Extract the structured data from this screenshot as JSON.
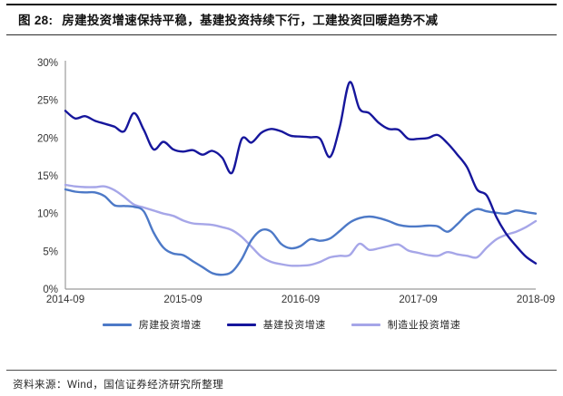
{
  "header": {
    "figure_label": "图 28:",
    "title": "房建投资增速保持平稳，基建投资持续下行，工建投资回暖趋势不减"
  },
  "footer": {
    "source": "资料来源：Wind，国信证券经济研究所整理"
  },
  "chart_data": {
    "type": "line",
    "title": "",
    "xlabel": "",
    "ylabel": "",
    "ylim": [
      0,
      30
    ],
    "y_tick_labels": [
      "0%",
      "5%",
      "10%",
      "15%",
      "20%",
      "25%",
      "30%"
    ],
    "x_tick_labels": [
      "2014-09",
      "2015-09",
      "2016-09",
      "2017-09",
      "2018-09"
    ],
    "x_tick_month_index": [
      0,
      12,
      24,
      36,
      48
    ],
    "x_start": "2014-09",
    "x_end": "2018-09",
    "x_points": 49,
    "grid": false,
    "legend_position": "bottom",
    "axis_color": "#9b9b9b",
    "tick_text_color": "#333333",
    "draw_order": [
      2,
      0,
      1
    ],
    "series": [
      {
        "key": "housing",
        "name": "房建投资增速",
        "color": "#4d79c7",
        "values": [
          13.2,
          12.9,
          12.8,
          12.8,
          12.3,
          11.1,
          11.0,
          10.9,
          10.3,
          7.5,
          5.5,
          4.7,
          4.5,
          3.7,
          2.9,
          2.1,
          1.9,
          2.3,
          4.0,
          6.5,
          7.8,
          7.6,
          6.0,
          5.4,
          5.7,
          6.6,
          6.4,
          6.7,
          7.7,
          8.8,
          9.4,
          9.6,
          9.4,
          9.0,
          8.5,
          8.3,
          8.3,
          8.4,
          8.3,
          7.6,
          8.6,
          9.9,
          10.6,
          10.3,
          10.1,
          10.0,
          10.4,
          10.2,
          10.0
        ]
      },
      {
        "key": "infrastructure",
        "name": "基建投资增速",
        "color": "#16169c",
        "values": [
          23.6,
          22.6,
          22.9,
          22.3,
          21.9,
          21.5,
          20.9,
          23.3,
          21.1,
          18.5,
          19.5,
          18.5,
          18.2,
          18.4,
          17.8,
          18.3,
          17.4,
          15.4,
          19.9,
          19.4,
          20.7,
          21.2,
          20.9,
          20.3,
          20.2,
          20.1,
          19.9,
          17.5,
          21.5,
          27.4,
          23.9,
          23.3,
          22.0,
          21.2,
          21.1,
          19.9,
          19.9,
          20.0,
          20.4,
          19.3,
          17.8,
          16.1,
          13.2,
          12.4,
          9.5,
          7.3,
          5.7,
          4.3,
          3.4
        ]
      },
      {
        "key": "manufacturing",
        "name": "制造业投资增速",
        "color": "#a6a6e8",
        "values": [
          13.8,
          13.6,
          13.5,
          13.5,
          13.6,
          13.1,
          12.2,
          11.2,
          10.8,
          10.4,
          10.0,
          9.7,
          9.1,
          8.7,
          8.6,
          8.5,
          8.2,
          7.8,
          6.9,
          5.6,
          4.3,
          3.6,
          3.3,
          3.1,
          3.1,
          3.2,
          3.6,
          4.2,
          4.4,
          4.5,
          6.0,
          5.2,
          5.4,
          5.7,
          5.9,
          5.1,
          4.8,
          4.5,
          4.4,
          4.9,
          4.6,
          4.4,
          4.2,
          5.5,
          6.6,
          7.2,
          7.6,
          8.2,
          9.0
        ]
      }
    ]
  }
}
